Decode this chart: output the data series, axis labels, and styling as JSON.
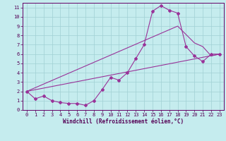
{
  "bg_color": "#c5ecee",
  "grid_color": "#a0d0d4",
  "line_color": "#993399",
  "spine_color": "#660066",
  "tick_color": "#550055",
  "xlabel": "Windchill (Refroidissement éolien,°C)",
  "xlabel_color": "#550055",
  "xlim": [
    -0.5,
    23.5
  ],
  "ylim": [
    0,
    11.5
  ],
  "xticks": [
    0,
    1,
    2,
    3,
    4,
    5,
    6,
    7,
    8,
    9,
    10,
    11,
    12,
    13,
    14,
    15,
    16,
    17,
    18,
    19,
    20,
    21,
    22,
    23
  ],
  "yticks": [
    0,
    1,
    2,
    3,
    4,
    5,
    6,
    7,
    8,
    9,
    10,
    11
  ],
  "line1_x": [
    0,
    1,
    2,
    3,
    4,
    5,
    6,
    7,
    8,
    9,
    10,
    11,
    12,
    13,
    14,
    15,
    16,
    17,
    18,
    19,
    20,
    21,
    22,
    23
  ],
  "line1_y": [
    2.0,
    1.2,
    1.5,
    1.0,
    0.8,
    0.7,
    0.7,
    0.5,
    1.0,
    2.2,
    3.5,
    3.2,
    4.0,
    5.5,
    7.0,
    10.6,
    11.2,
    10.7,
    10.4,
    6.8,
    5.8,
    5.2,
    6.0,
    6.0
  ],
  "line2_x": [
    0,
    18,
    20,
    21,
    22,
    23
  ],
  "line2_y": [
    2.0,
    9.0,
    7.2,
    6.8,
    5.8,
    6.0
  ],
  "line3_x": [
    0,
    23
  ],
  "line3_y": [
    2.0,
    6.0
  ],
  "tick_fontsize": 5.0,
  "xlabel_fontsize": 5.5
}
